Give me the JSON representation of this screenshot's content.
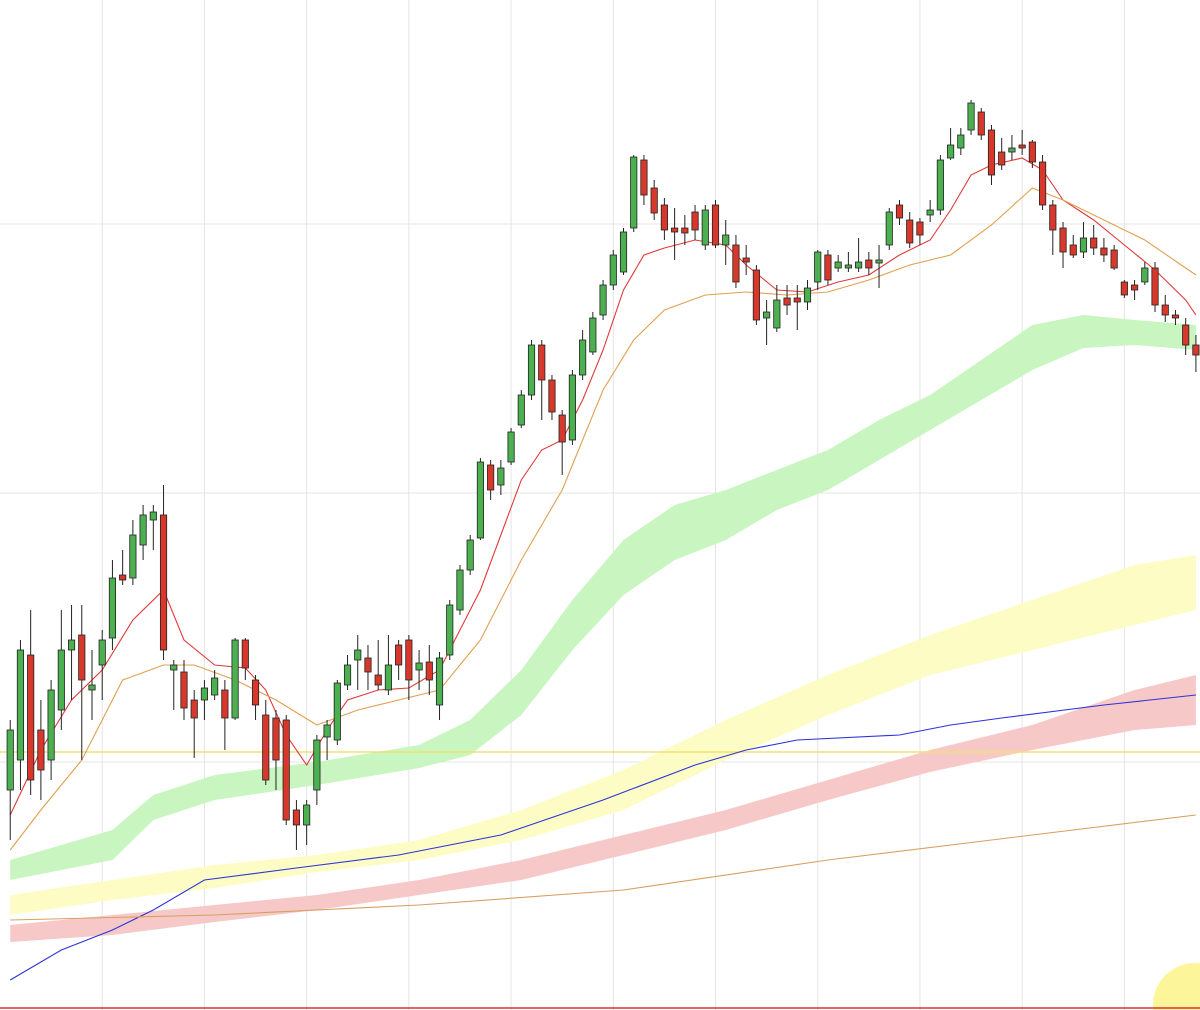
{
  "chart_data": {
    "type": "candlestick",
    "xlim": [
      -1,
      116.4
    ],
    "ylim": [
      0,
      1010
    ],
    "grid": true,
    "xticks": [
      9,
      19,
      29,
      39,
      49,
      59,
      69,
      79,
      89,
      99,
      109
    ],
    "yticks": [
      248,
      517,
      786
    ],
    "up_color": "#4cb050",
    "down_color": "#d8382c",
    "open": [
      220,
      250,
      355,
      280,
      250,
      300,
      360,
      375,
      320,
      345,
      372,
      435,
      432,
      465,
      490,
      495,
      340,
      338,
      310,
      310,
      315,
      320,
      292,
      370,
      330,
      295,
      292,
      290,
      200,
      185,
      220,
      273,
      270,
      325,
      350,
      352,
      335,
      320,
      365,
      370,
      340,
      348,
      305,
      355,
      400,
      440,
      472,
      545,
      525,
      548,
      585,
      615,
      665,
      630,
      595,
      570,
      635,
      658,
      695,
      725,
      738,
      782,
      850,
      822,
      805,
      782,
      782,
      798,
      765,
      805,
      765,
      765,
      752,
      740,
      692,
      682,
      712,
      712,
      708,
      728,
      755,
      742,
      742,
      742,
      750,
      747,
      765,
      805,
      790,
      788,
      795,
      800,
      852,
      862,
      880,
      898,
      880,
      858,
      858,
      865,
      868,
      848,
      805,
      782,
      765,
      758,
      772,
      762,
      760,
      728,
      725,
      728,
      742,
      705,
      695,
      685,
      665
    ],
    "high": [
      290,
      370,
      400,
      310,
      330,
      400,
      405,
      405,
      360,
      380,
      450,
      460,
      490,
      505,
      505,
      525,
      350,
      350,
      320,
      330,
      340,
      330,
      372,
      372,
      335,
      310,
      300,
      295,
      210,
      210,
      275,
      290,
      330,
      355,
      375,
      365,
      370,
      375,
      370,
      375,
      360,
      365,
      358,
      410,
      445,
      475,
      552,
      550,
      550,
      582,
      620,
      670,
      670,
      635,
      600,
      640,
      680,
      698,
      730,
      760,
      782,
      855,
      855,
      830,
      812,
      802,
      795,
      805,
      805,
      810,
      790,
      775,
      765,
      745,
      710,
      725,
      725,
      725,
      730,
      760,
      760,
      755,
      758,
      772,
      758,
      765,
      802,
      810,
      798,
      792,
      810,
      855,
      882,
      882,
      910,
      902,
      885,
      872,
      875,
      880,
      870,
      855,
      810,
      788,
      775,
      788,
      785,
      772,
      765,
      730,
      730,
      748,
      748,
      715,
      700,
      692,
      675
    ],
    "low": [
      170,
      220,
      215,
      210,
      230,
      280,
      310,
      250,
      290,
      310,
      360,
      425,
      425,
      450,
      460,
      350,
      300,
      290,
      252,
      290,
      310,
      260,
      290,
      330,
      290,
      225,
      220,
      185,
      160,
      165,
      205,
      250,
      265,
      320,
      320,
      320,
      320,
      315,
      330,
      310,
      320,
      315,
      290,
      350,
      395,
      435,
      470,
      510,
      515,
      545,
      582,
      610,
      590,
      590,
      535,
      565,
      630,
      655,
      690,
      720,
      735,
      778,
      805,
      790,
      770,
      750,
      765,
      770,
      760,
      762,
      745,
      722,
      735,
      685,
      665,
      678,
      695,
      680,
      700,
      720,
      725,
      738,
      738,
      738,
      735,
      722,
      760,
      785,
      762,
      765,
      788,
      795,
      850,
      855,
      875,
      870,
      825,
      840,
      850,
      855,
      842,
      800,
      755,
      742,
      752,
      752,
      755,
      748,
      740,
      712,
      710,
      725,
      698,
      688,
      685,
      655,
      638
    ],
    "close": [
      280,
      360,
      230,
      240,
      320,
      360,
      370,
      330,
      325,
      370,
      432,
      430,
      475,
      495,
      498,
      360,
      345,
      302,
      292,
      322,
      332,
      292,
      370,
      342,
      305,
      230,
      250,
      190,
      185,
      205,
      270,
      285,
      327,
      345,
      360,
      338,
      325,
      345,
      345,
      330,
      347,
      330,
      352,
      405,
      440,
      470,
      548,
      520,
      542,
      578,
      615,
      665,
      630,
      598,
      568,
      635,
      670,
      692,
      725,
      755,
      778,
      853,
      815,
      797,
      780,
      778,
      777,
      780,
      800,
      765,
      775,
      728,
      748,
      690,
      698,
      710,
      705,
      708,
      722,
      758,
      730,
      748,
      745,
      748,
      742,
      750,
      798,
      792,
      767,
      775,
      800,
      850,
      865,
      875,
      907,
      875,
      835,
      845,
      862,
      862,
      848,
      805,
      780,
      758,
      755,
      772,
      762,
      755,
      742,
      715,
      720,
      742,
      705,
      695,
      692,
      665,
      655
    ],
    "bands": [
      {
        "color": "#c8f5c0",
        "x": [
          0,
          10,
          14,
          20,
          30,
          40,
          45,
          50,
          55,
          60,
          65,
          70,
          75,
          80,
          85,
          90,
          95,
          100,
          105,
          110,
          116
        ],
        "lower": [
          130,
          150,
          190,
          210,
          225,
          242,
          255,
          295,
          360,
          415,
          450,
          470,
          500,
          520,
          550,
          580,
          610,
          640,
          662,
          665,
          660
        ],
        "upper": [
          150,
          180,
          215,
          235,
          248,
          265,
          290,
          340,
          410,
          470,
          505,
          520,
          540,
          560,
          590,
          615,
          650,
          685,
          695,
          690,
          685
        ]
      },
      {
        "color": "#fdfcc4",
        "x": [
          0,
          10,
          20,
          30,
          40,
          50,
          60,
          70,
          80,
          90,
          100,
          110,
          116
        ],
        "lower": [
          95,
          110,
          122,
          138,
          150,
          170,
          200,
          250,
          295,
          335,
          360,
          385,
          400
        ],
        "upper": [
          115,
          130,
          145,
          155,
          170,
          200,
          240,
          290,
          335,
          375,
          410,
          445,
          455
        ]
      },
      {
        "color": "#f6c8c8",
        "x": [
          0,
          10,
          20,
          30,
          40,
          50,
          60,
          70,
          80,
          90,
          100,
          110,
          116
        ],
        "lower": [
          68,
          75,
          88,
          100,
          115,
          130,
          155,
          180,
          210,
          238,
          260,
          280,
          285
        ],
        "upper": [
          85,
          95,
          105,
          115,
          130,
          150,
          175,
          200,
          230,
          260,
          285,
          320,
          335
        ]
      }
    ],
    "lines": [
      {
        "color": "#e03a3a",
        "x": [
          0,
          3,
          6,
          9,
          12,
          15,
          17,
          20,
          23,
          25,
          27,
          29,
          31,
          33,
          36,
          39,
          42,
          44,
          46,
          48,
          50,
          52,
          54,
          56,
          58,
          60,
          62,
          64,
          67,
          70,
          72,
          75,
          78,
          81,
          84,
          87,
          90,
          92,
          94,
          96,
          99,
          101,
          103,
          106,
          109,
          112,
          115,
          116
        ],
        "values": [
          195,
          260,
          310,
          340,
          390,
          420,
          370,
          345,
          342,
          320,
          275,
          245,
          280,
          310,
          320,
          322,
          340,
          380,
          420,
          475,
          530,
          560,
          570,
          610,
          660,
          720,
          755,
          762,
          770,
          765,
          745,
          720,
          718,
          728,
          735,
          755,
          770,
          800,
          835,
          845,
          852,
          840,
          810,
          790,
          765,
          740,
          710,
          695
        ]
      },
      {
        "color": "#e0a050",
        "x": [
          0,
          3,
          7,
          11,
          15,
          18,
          22,
          26,
          30,
          34,
          38,
          42,
          46,
          50,
          54,
          58,
          61,
          64,
          68,
          72,
          76,
          80,
          84,
          88,
          92,
          96,
          100,
          103,
          107,
          111,
          116
        ],
        "values": [
          160,
          200,
          250,
          330,
          345,
          345,
          330,
          310,
          285,
          300,
          310,
          320,
          370,
          450,
          520,
          620,
          670,
          700,
          715,
          718,
          715,
          718,
          730,
          745,
          755,
          785,
          822,
          810,
          790,
          770,
          735
        ]
      },
      {
        "color": "#2b35d8",
        "x": [
          0,
          5,
          10,
          14,
          19,
          28,
          38,
          48,
          58,
          67,
          72,
          77,
          87,
          92,
          97,
          107,
          116
        ],
        "values": [
          30,
          60,
          80,
          100,
          130,
          142,
          155,
          175,
          210,
          245,
          260,
          270,
          275,
          285,
          292,
          305,
          315
        ]
      },
      {
        "color": "#d8a060",
        "x": [
          0,
          20,
          40,
          60,
          80,
          100,
          116
        ],
        "values": [
          90,
          95,
          105,
          120,
          150,
          175,
          195
        ]
      }
    ],
    "hlines": [
      {
        "color": "#f3e070",
        "value": 258
      },
      {
        "color": "#d83030",
        "value": 2
      }
    ]
  }
}
